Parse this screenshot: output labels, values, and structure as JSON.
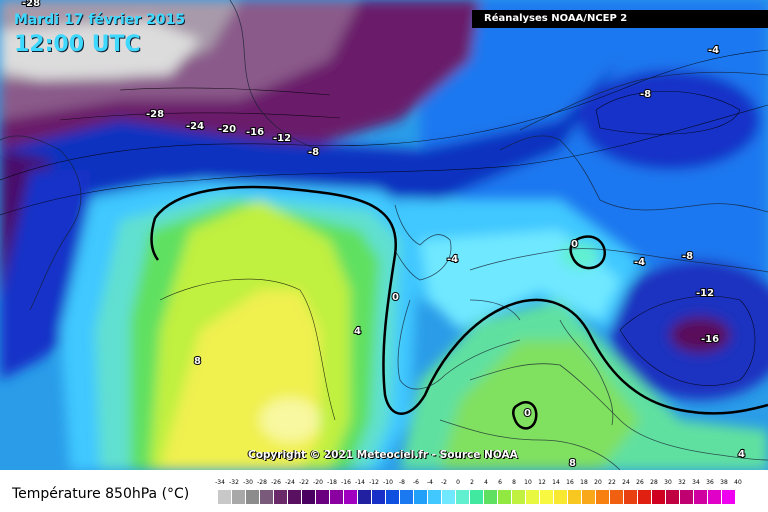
{
  "header": {
    "date": "Mardi 17 février 2015",
    "time": "12:00 UTC",
    "source": "Réanalyses NOAA/NCEP 2"
  },
  "copyright": "Copyright © 2021 Meteociel.fr - Source NOAA",
  "legend": {
    "title": "Température 850hPa (°C)",
    "ticks": [
      "-34",
      "-32",
      "-30",
      "-28",
      "-26",
      "-24",
      "-22",
      "-20",
      "-18",
      "-16",
      "-14",
      "-12",
      "-10",
      "-8",
      "-6",
      "-4",
      "-2",
      "0",
      "2",
      "4",
      "6",
      "8",
      "10",
      "12",
      "14",
      "16",
      "18",
      "20",
      "22",
      "24",
      "26",
      "28",
      "30",
      "32",
      "34",
      "36",
      "38",
      "40"
    ],
    "colors": [
      "#c8c8c8",
      "#a8a8a8",
      "#8c8c8c",
      "#7a5a7a",
      "#6a2a6a",
      "#5a1060",
      "#4a0060",
      "#6a0080",
      "#8a00a0",
      "#a000c0",
      "#2020a0",
      "#1830c8",
      "#1050e0",
      "#1a78f0",
      "#20a0f8",
      "#40c8ff",
      "#70e8ff",
      "#60f0d0",
      "#40e8a0",
      "#60e060",
      "#90e840",
      "#c0f040",
      "#e8f840",
      "#f8f840",
      "#f8e830",
      "#f8c820",
      "#f8a818",
      "#f88010",
      "#f06010",
      "#e84010",
      "#e02010",
      "#d00020",
      "#c00040",
      "#c00070",
      "#d000a0",
      "#e000c8",
      "#f000f0"
    ]
  },
  "map_labels": [
    {
      "id": "m28-top",
      "text": "-28"
    },
    {
      "id": "m28",
      "text": "-28"
    },
    {
      "id": "m24",
      "text": "-24"
    },
    {
      "id": "m20",
      "text": "-20"
    },
    {
      "id": "m16",
      "text": "-16"
    },
    {
      "id": "m12-n",
      "text": "-12"
    },
    {
      "id": "m8-n",
      "text": "-8"
    },
    {
      "id": "m4-ne",
      "text": "-4"
    },
    {
      "id": "m8-ne",
      "text": "-8"
    },
    {
      "id": "z-center",
      "text": "0"
    },
    {
      "id": "m4-c",
      "text": "-4"
    },
    {
      "id": "m4-e",
      "text": "-4"
    },
    {
      "id": "m8-e",
      "text": "-8"
    },
    {
      "id": "m12-e",
      "text": "-12"
    },
    {
      "id": "m16-e",
      "text": "-16"
    },
    {
      "id": "z-west",
      "text": "0"
    },
    {
      "id": "p4",
      "text": "4"
    },
    {
      "id": "p8",
      "text": "8"
    },
    {
      "id": "z-south",
      "text": "0"
    },
    {
      "id": "p8-s",
      "text": "8"
    },
    {
      "id": "p4-se",
      "text": "4"
    }
  ]
}
